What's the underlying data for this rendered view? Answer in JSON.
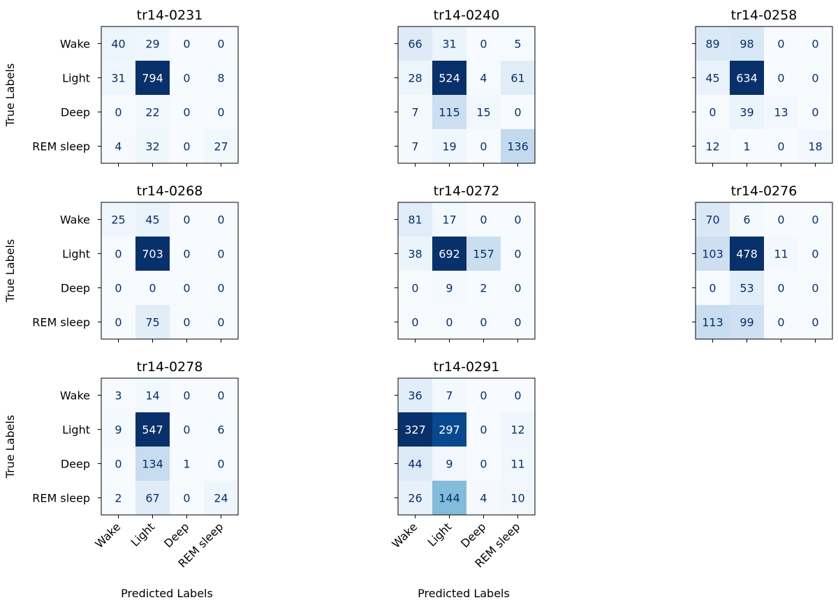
{
  "chart_data": {
    "type": "heatmap",
    "colormap": "Blues",
    "class_labels": [
      "Wake",
      "Light",
      "Deep",
      "REM sleep"
    ],
    "ylabel": "True Labels",
    "xlabel": "Predicted Labels",
    "matrices": [
      {
        "title": "tr14-0231",
        "values": [
          [
            40,
            29,
            0,
            0
          ],
          [
            31,
            794,
            0,
            8
          ],
          [
            0,
            22,
            0,
            0
          ],
          [
            4,
            32,
            0,
            27
          ]
        ]
      },
      {
        "title": "tr14-0240",
        "values": [
          [
            66,
            31,
            0,
            5
          ],
          [
            28,
            524,
            4,
            61
          ],
          [
            7,
            115,
            15,
            0
          ],
          [
            7,
            19,
            0,
            136
          ]
        ]
      },
      {
        "title": "tr14-0258",
        "values": [
          [
            89,
            98,
            0,
            0
          ],
          [
            45,
            634,
            0,
            0
          ],
          [
            0,
            39,
            13,
            0
          ],
          [
            12,
            1,
            0,
            18
          ]
        ]
      },
      {
        "title": "tr14-0268",
        "values": [
          [
            25,
            45,
            0,
            0
          ],
          [
            0,
            703,
            0,
            0
          ],
          [
            0,
            0,
            0,
            0
          ],
          [
            0,
            75,
            0,
            0
          ]
        ]
      },
      {
        "title": "tr14-0272",
        "values": [
          [
            81,
            17,
            0,
            0
          ],
          [
            38,
            692,
            157,
            0
          ],
          [
            0,
            9,
            2,
            0
          ],
          [
            0,
            0,
            0,
            0
          ]
        ]
      },
      {
        "title": "tr14-0276",
        "values": [
          [
            70,
            6,
            0,
            0
          ],
          [
            103,
            478,
            11,
            0
          ],
          [
            0,
            53,
            0,
            0
          ],
          [
            113,
            99,
            0,
            0
          ]
        ]
      },
      {
        "title": "tr14-0278",
        "values": [
          [
            3,
            14,
            0,
            0
          ],
          [
            9,
            547,
            0,
            6
          ],
          [
            0,
            134,
            1,
            0
          ],
          [
            2,
            67,
            0,
            24
          ]
        ]
      },
      {
        "title": "tr14-0291",
        "values": [
          [
            36,
            7,
            0,
            0
          ],
          [
            327,
            297,
            0,
            12
          ],
          [
            44,
            9,
            0,
            11
          ],
          [
            26,
            144,
            4,
            10
          ]
        ]
      }
    ]
  }
}
